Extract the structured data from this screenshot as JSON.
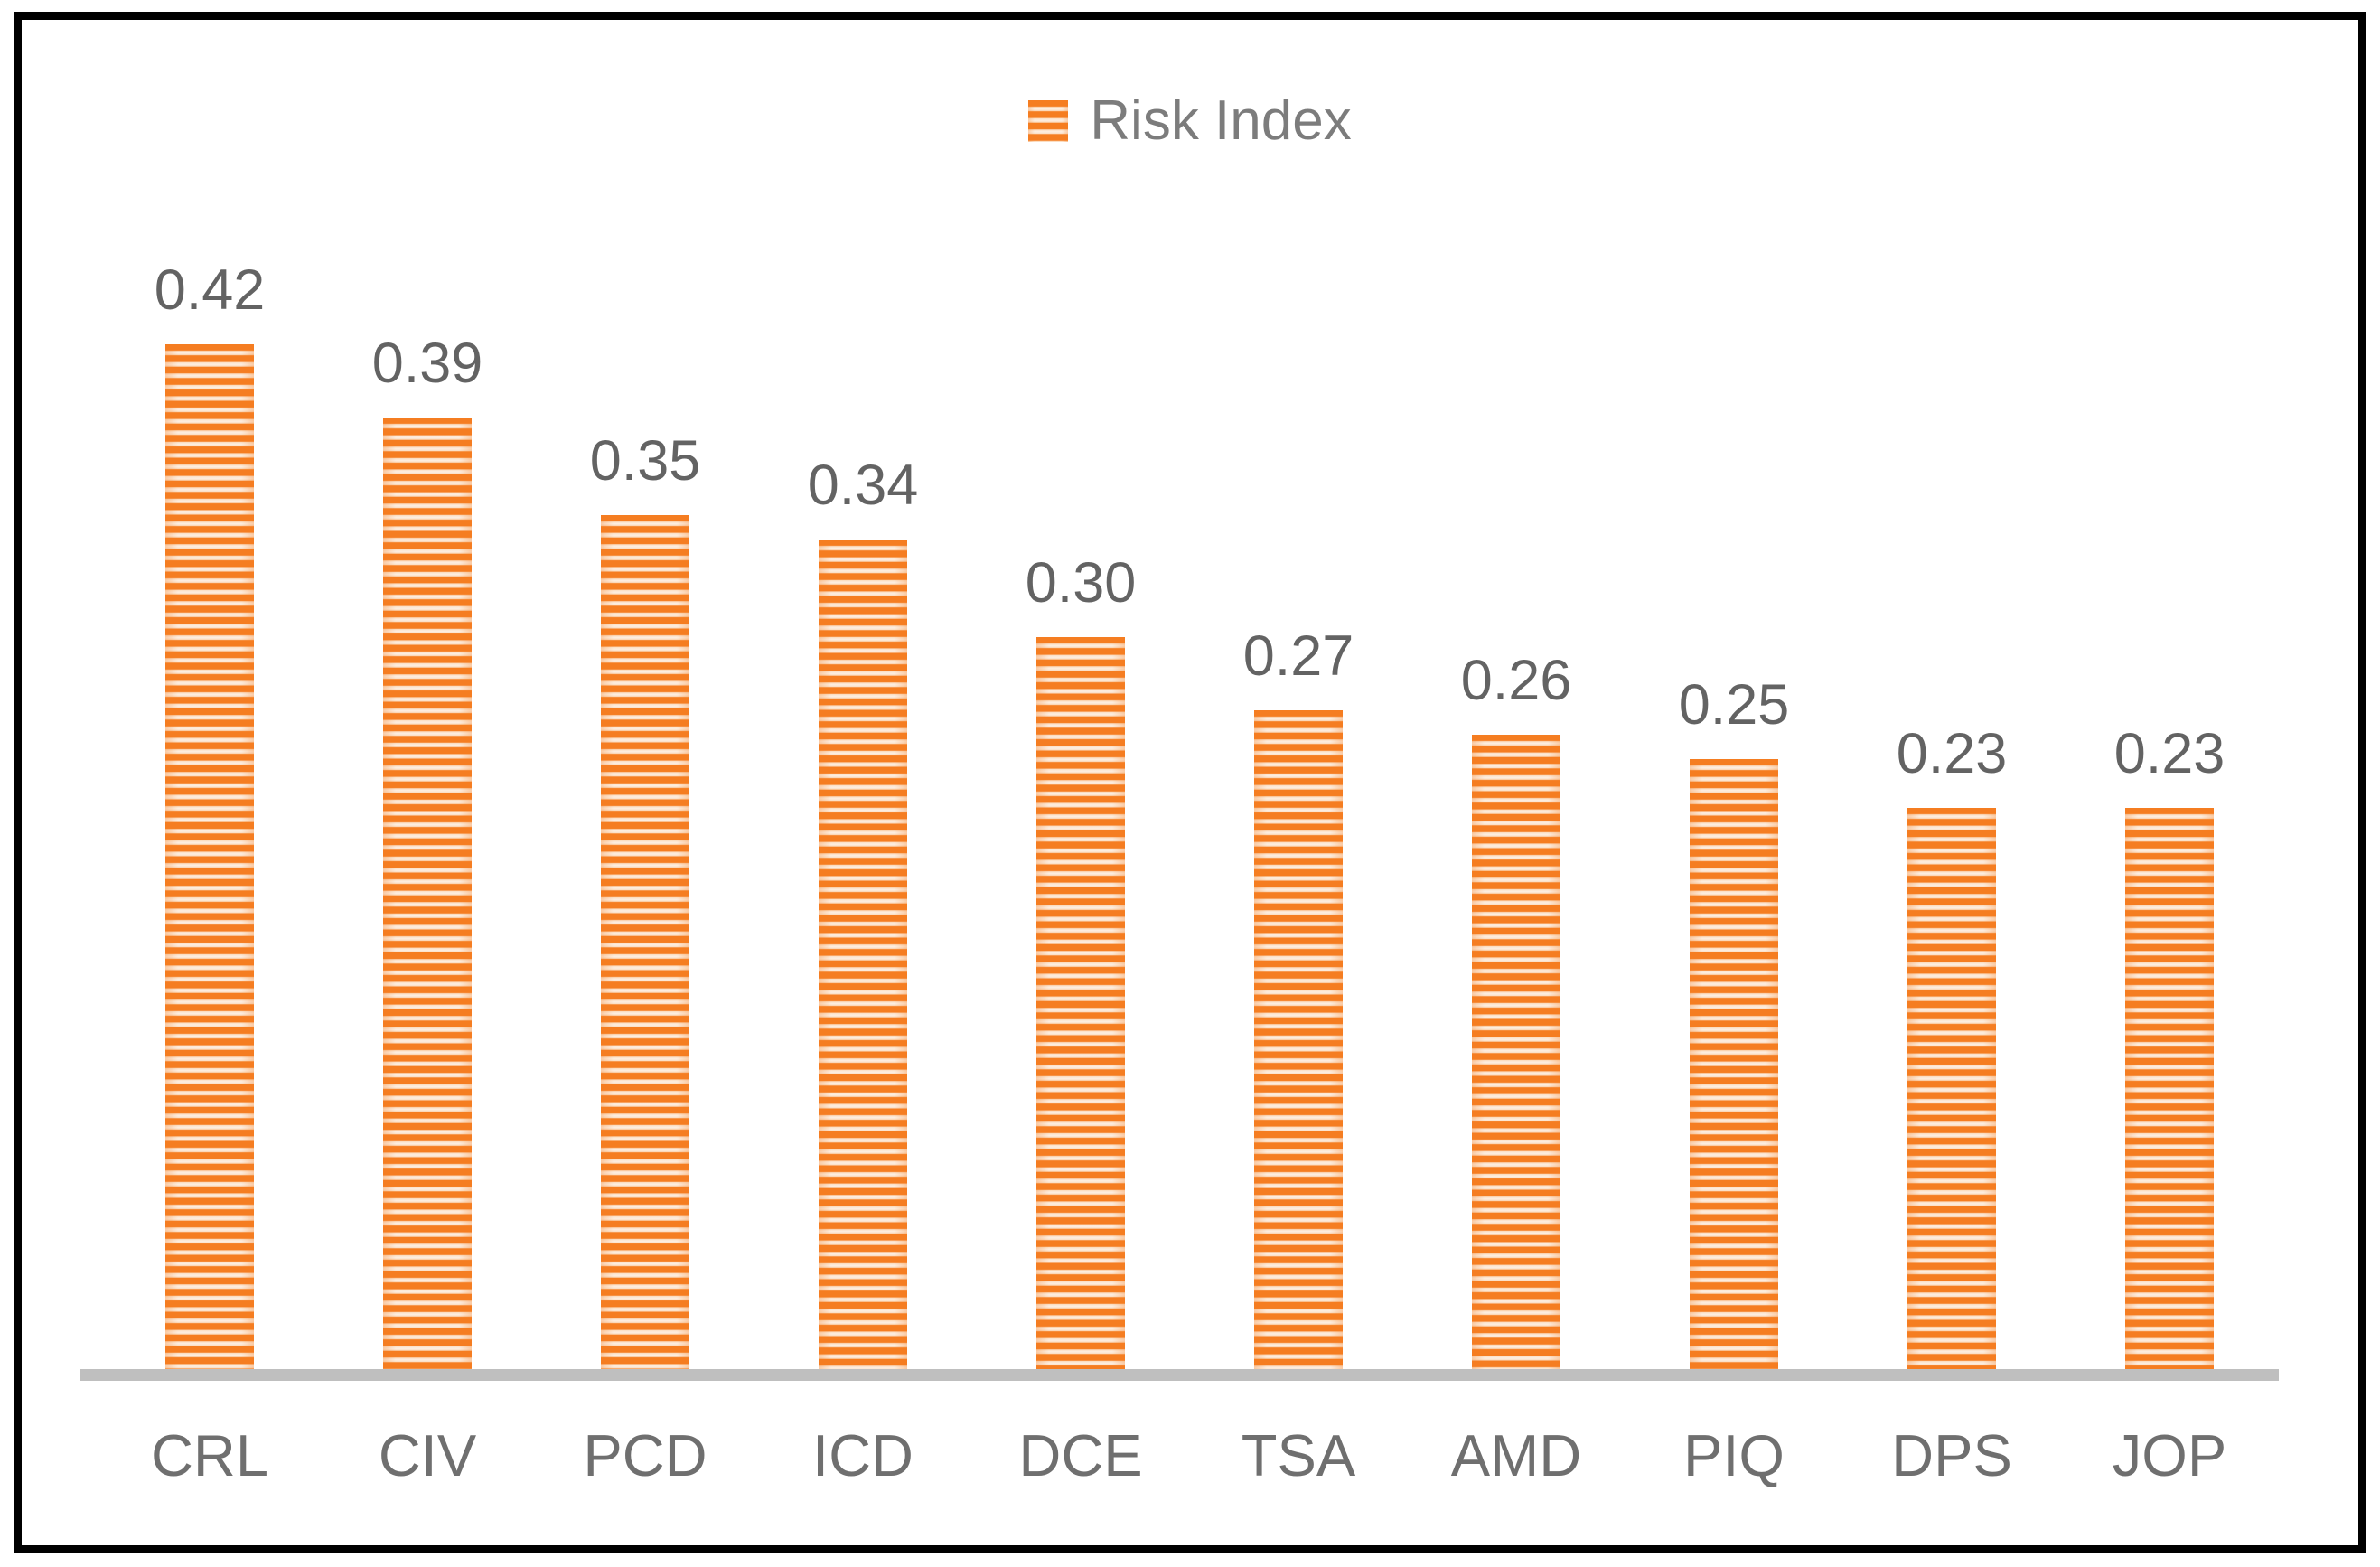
{
  "legend": {
    "label": "Risk Index",
    "swatch": "orange-striped-square",
    "position": "top-center"
  },
  "colors": {
    "bar_stripe_dark": "#F57D21",
    "bar_stripe_mid": "#FBDEC3",
    "bar_stripe_light": "#FDEFE3",
    "axis_line": "#BFBFBF",
    "value_label_text": "#636363",
    "category_label_text": "#6F6F6F",
    "legend_text": "#7C7C7C",
    "border": "#000000",
    "background": "#FFFFFF"
  },
  "chart_data": {
    "type": "bar",
    "title": "",
    "xlabel": "",
    "ylabel": "",
    "series_name": "Risk Index",
    "categories": [
      "CRL",
      "CIV",
      "PCD",
      "ICD",
      "DCE",
      "TSA",
      "AMD",
      "PIQ",
      "DPS",
      "JOP"
    ],
    "values": [
      0.42,
      0.39,
      0.35,
      0.34,
      0.3,
      0.27,
      0.26,
      0.25,
      0.23,
      0.23
    ],
    "value_labels": [
      "0.42",
      "0.39",
      "0.35",
      "0.34",
      "0.30",
      "0.27",
      "0.26",
      "0.25",
      "0.23",
      "0.23"
    ],
    "ylim": [
      0,
      0.45
    ],
    "y_axis_visible": false,
    "grid": false,
    "data_labels": "above-bars",
    "legend_position": "top-center",
    "bar_fill_pattern": "horizontal-orange-stripes"
  }
}
